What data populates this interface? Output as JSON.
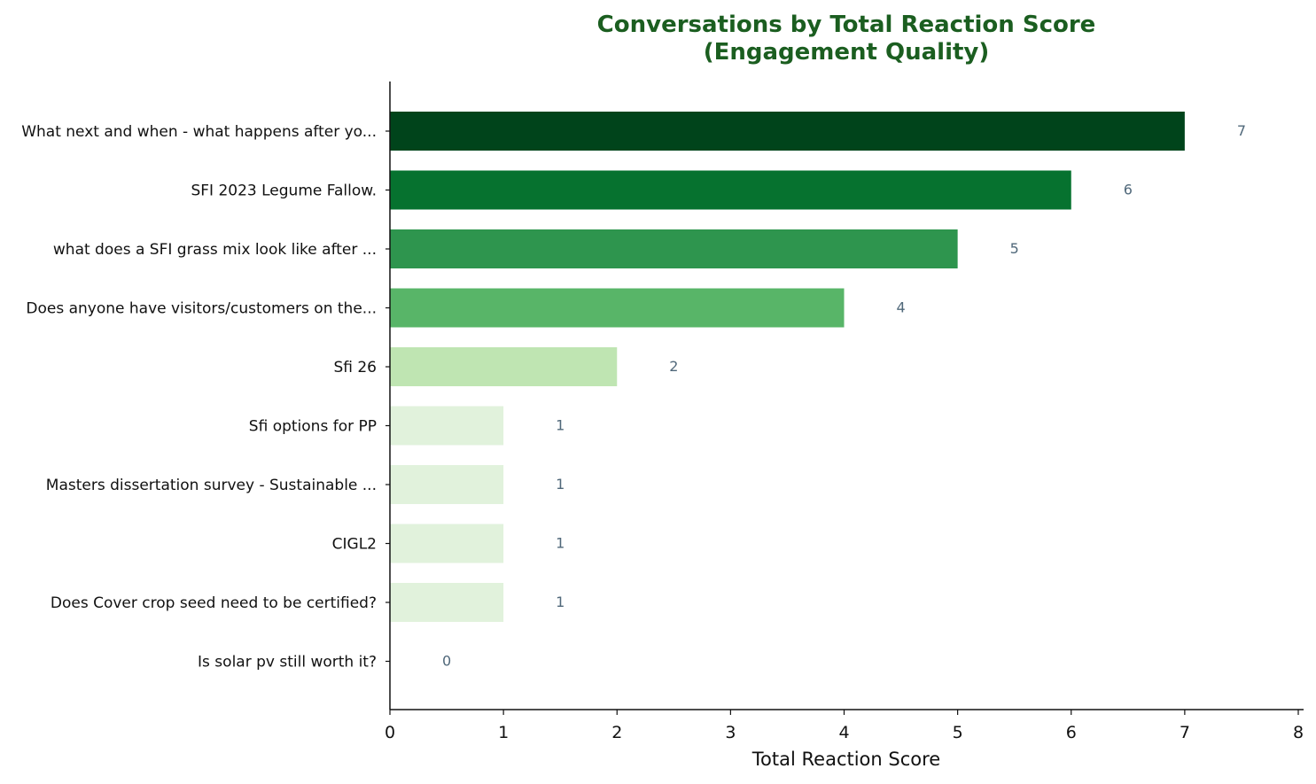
{
  "chart_data": {
    "type": "bar",
    "orientation": "horizontal",
    "title": "Conversations by Total Reaction Score\n(Engagement Quality)",
    "xlabel": "Total Reaction Score",
    "ylabel": "",
    "xlim": [
      0,
      8
    ],
    "xticks": [
      0,
      1,
      2,
      3,
      4,
      5,
      6,
      7,
      8
    ],
    "grid": false,
    "legend": "none",
    "categories": [
      "What next and when - what happens after yo...",
      "SFI 2023 Legume Fallow.",
      "what does a SFI grass mix look like after ...",
      "Does anyone have visitors/customers on the...",
      "Sfi 26",
      "Sfi options for PP",
      "Masters dissertation survey - Sustainable ...",
      "CIGL2",
      "Does Cover crop seed need to be certified?",
      "Is solar pv still worth it?"
    ],
    "values": [
      7,
      6,
      5,
      4,
      2,
      1,
      1,
      1,
      1,
      0
    ],
    "value_labels": [
      "7",
      "6",
      "5",
      "4",
      "2",
      "1",
      "1",
      "1",
      "1",
      "0"
    ],
    "bar_colors": [
      "#00441b",
      "#06722f",
      "#2e954e",
      "#58b568",
      "#bfe5b2",
      "#e1f2dc",
      "#e1f2dc",
      "#e1f2dc",
      "#e1f2dc",
      "#f4fbf1"
    ]
  },
  "colors": {
    "title": "#1b5e20",
    "value_label": "#50687a",
    "axis": "#111111"
  }
}
